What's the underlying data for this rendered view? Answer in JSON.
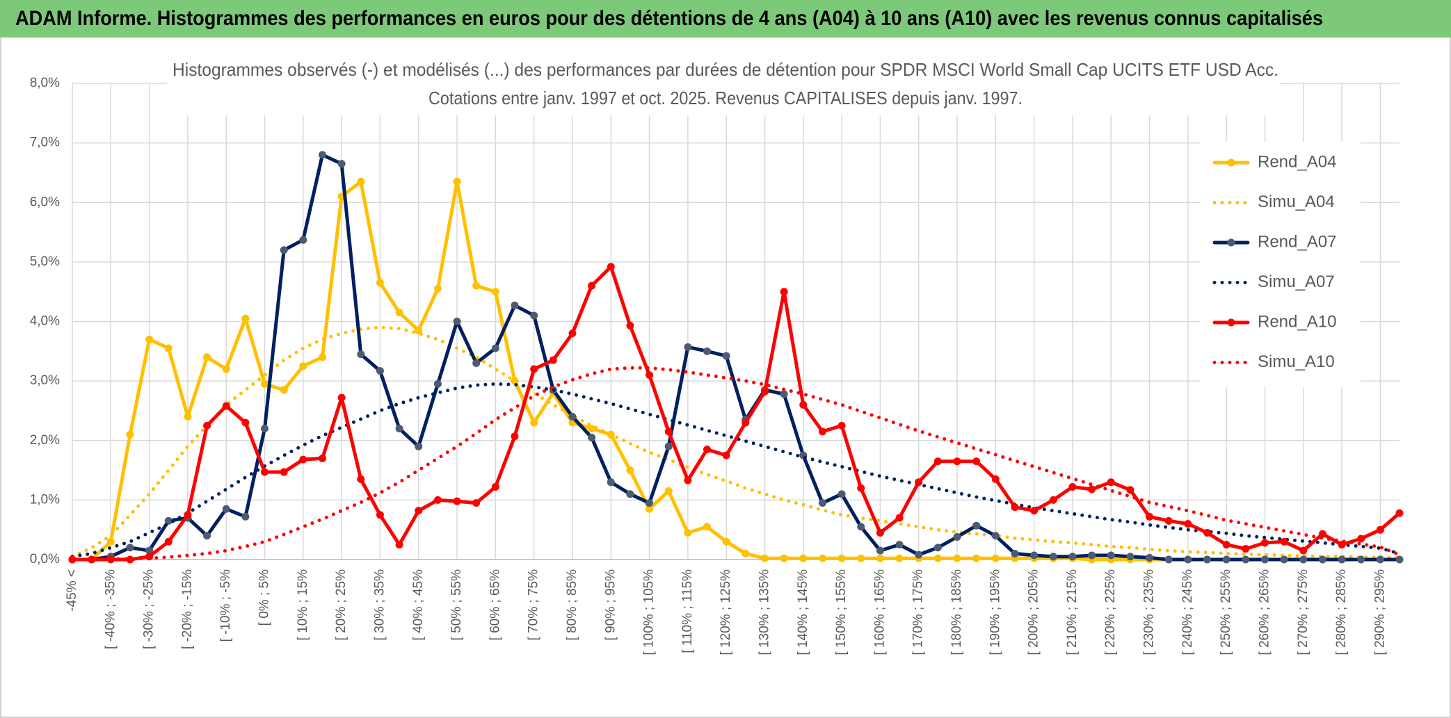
{
  "banner": "ADAM Informe. Histogrammes des performances en euros pour des détentions de 4 ans (A04) à 10 ans (A10) avec les revenus connus capitalisés",
  "chart_data": {
    "type": "line",
    "title": "Histogrammes observés (-) et modélisés (...) des performances par durées de détention pour SPDR MSCI World Small Cap UCITS ETF USD Acc.",
    "subtitle": "Cotations entre janv. 1997 et oct. 2025. Revenus CAPITALISES depuis janv. 1997.",
    "categories": [
      "-45% <",
      null,
      "[ -40% ; -35%",
      null,
      "[ -30% ; -25%",
      null,
      "[ -20% ; -15%",
      null,
      "[ -10% ; -5%",
      null,
      "[ 0% ; 5%",
      null,
      "[ 10% ; 15%",
      null,
      "[ 20% ; 25%",
      null,
      "[ 30% ; 35%",
      null,
      "[ 40% ; 45%",
      null,
      "[ 50% ; 55%",
      null,
      "[ 60% ; 65%",
      null,
      "[ 70% ; 75%",
      null,
      "[ 80% ; 85%",
      null,
      "[ 90% ; 95%",
      null,
      "[ 100% ; 105%",
      null,
      "[ 110% ; 115%",
      null,
      "[ 120% ; 125%",
      null,
      "[ 130% ; 135%",
      null,
      "[ 140% ; 145%",
      null,
      "[ 150% ; 155%",
      null,
      "[ 160% ; 165%",
      null,
      "[ 170% ; 175%",
      null,
      "[ 180% ; 185%",
      null,
      "[ 190% ; 195%",
      null,
      "[ 200% ; 205%",
      null,
      "[ 210% ; 215%",
      null,
      "[ 220% ; 225%",
      null,
      "[ 230% ; 235%",
      null,
      "[ 240% ; 245%",
      null,
      "[ 250% ; 255%",
      null,
      "[ 260% ; 265%",
      null,
      "[ 270% ; 275%",
      null,
      "[ 280% ; 285%",
      null,
      "[ 290% ; 295%",
      null
    ],
    "ylim": [
      0,
      8
    ],
    "yticks": [
      {
        "value": 0,
        "label": "0,0%"
      },
      {
        "value": 1,
        "label": "1,0%"
      },
      {
        "value": 2,
        "label": "2,0%"
      },
      {
        "value": 3,
        "label": "3,0%"
      },
      {
        "value": 4,
        "label": "4,0%"
      },
      {
        "value": 5,
        "label": "5,0%"
      },
      {
        "value": 6,
        "label": "6,0%"
      },
      {
        "value": 7,
        "label": "7,0%"
      },
      {
        "value": 8,
        "label": "8,0%"
      }
    ],
    "grid": true,
    "legend": "right",
    "series": [
      {
        "name": "Rend_A04",
        "color": "#ffc000",
        "line_style": "solid",
        "values": [
          0,
          0,
          0.3,
          2.1,
          3.7,
          3.55,
          2.4,
          3.4,
          3.2,
          4.05,
          2.95,
          2.85,
          3.25,
          3.4,
          6.1,
          6.35,
          4.65,
          4.15,
          3.85,
          4.55,
          6.35,
          4.6,
          4.5,
          3.0,
          2.3,
          2.8,
          2.3,
          2.2,
          2.1,
          1.5,
          0.85,
          1.15,
          0.45,
          0.55,
          0.3,
          0.1,
          0.02,
          0.02,
          0.02,
          0.02,
          0.02,
          0.02,
          0.02,
          0.02,
          0.02,
          0.02,
          0.02,
          0.02,
          0.02,
          0.02,
          0.02,
          0.02,
          0.02,
          0,
          0,
          0,
          0,
          0,
          0,
          0,
          0,
          0,
          0,
          0,
          0,
          0,
          0,
          0,
          0,
          0
        ]
      },
      {
        "name": "Simu_A04",
        "color": "#ffc000",
        "line_style": "dotted",
        "values": [
          0.05,
          0.2,
          0.4,
          0.75,
          1.1,
          1.5,
          1.9,
          2.25,
          2.6,
          2.85,
          3.1,
          3.35,
          3.55,
          3.7,
          3.8,
          3.87,
          3.9,
          3.88,
          3.8,
          3.7,
          3.55,
          3.4,
          3.2,
          3.0,
          2.8,
          2.6,
          2.42,
          2.25,
          2.1,
          1.95,
          1.8,
          1.68,
          1.55,
          1.43,
          1.32,
          1.2,
          1.1,
          1.0,
          0.92,
          0.83,
          0.75,
          0.7,
          0.65,
          0.6,
          0.55,
          0.5,
          0.46,
          0.43,
          0.4,
          0.36,
          0.33,
          0.3,
          0.28,
          0.25,
          0.22,
          0.2,
          0.17,
          0.15,
          0.13,
          0.12,
          0.1,
          0.09,
          0.08,
          0.07,
          0.06,
          0.05,
          0.05,
          0.04,
          0.04,
          0.03
        ]
      },
      {
        "name": "Rend_A07",
        "color": "#002060",
        "marker_color": "#4d5b72",
        "line_style": "solid",
        "values": [
          0,
          0,
          0.05,
          0.2,
          0.15,
          0.65,
          0.7,
          0.4,
          0.85,
          0.72,
          2.2,
          5.2,
          5.37,
          6.8,
          6.65,
          3.45,
          3.17,
          2.2,
          1.9,
          2.95,
          4.0,
          3.3,
          3.55,
          4.27,
          4.1,
          2.85,
          2.4,
          2.05,
          1.3,
          1.1,
          0.95,
          1.9,
          3.57,
          3.5,
          3.42,
          2.35,
          2.85,
          2.78,
          1.75,
          0.95,
          1.1,
          0.55,
          0.15,
          0.25,
          0.08,
          0.2,
          0.38,
          0.57,
          0.4,
          0.1,
          0.07,
          0.05,
          0.05,
          0.07,
          0.07,
          0.05,
          0.03,
          0,
          0,
          0,
          0,
          0,
          0,
          0,
          0,
          0,
          0,
          0,
          0,
          0
        ]
      },
      {
        "name": "Simu_A07",
        "color": "#002060",
        "line_style": "dotted",
        "values": [
          0.05,
          0.1,
          0.2,
          0.3,
          0.45,
          0.6,
          0.78,
          0.98,
          1.18,
          1.38,
          1.57,
          1.75,
          1.92,
          2.08,
          2.22,
          2.36,
          2.5,
          2.62,
          2.72,
          2.8,
          2.88,
          2.93,
          2.95,
          2.94,
          2.9,
          2.85,
          2.78,
          2.7,
          2.62,
          2.53,
          2.44,
          2.35,
          2.26,
          2.17,
          2.08,
          1.99,
          1.9,
          1.81,
          1.72,
          1.64,
          1.56,
          1.48,
          1.4,
          1.33,
          1.26,
          1.19,
          1.12,
          1.05,
          0.99,
          0.93,
          0.87,
          0.82,
          0.77,
          0.72,
          0.67,
          0.63,
          0.58,
          0.54,
          0.5,
          0.47,
          0.44,
          0.4,
          0.37,
          0.34,
          0.31,
          0.28,
          0.25,
          0.22,
          0.19,
          0.1
        ]
      },
      {
        "name": "Rend_A10",
        "color": "#ff0000",
        "line_style": "solid",
        "values": [
          0,
          0,
          0,
          0,
          0.05,
          0.3,
          0.75,
          2.25,
          2.58,
          2.3,
          1.47,
          1.47,
          1.68,
          1.7,
          2.72,
          1.35,
          0.75,
          0.25,
          0.82,
          1.0,
          0.98,
          0.95,
          1.22,
          2.07,
          3.2,
          3.35,
          3.8,
          4.6,
          4.92,
          3.93,
          3.1,
          2.15,
          1.33,
          1.85,
          1.75,
          2.3,
          2.82,
          4.5,
          2.6,
          2.15,
          2.25,
          1.2,
          0.45,
          0.7,
          1.3,
          1.65,
          1.65,
          1.65,
          1.35,
          0.88,
          0.82,
          1.0,
          1.22,
          1.18,
          1.3,
          1.17,
          0.72,
          0.65,
          0.6,
          0.45,
          0.25,
          0.18,
          0.28,
          0.3,
          0.15,
          0.43,
          0.25,
          0.35,
          0.5,
          0.78
        ]
      },
      {
        "name": "Simu_A10",
        "color": "#ff0000",
        "line_style": "dotted",
        "values": [
          0,
          0,
          0.01,
          0.01,
          0.02,
          0.04,
          0.07,
          0.1,
          0.15,
          0.22,
          0.3,
          0.42,
          0.55,
          0.68,
          0.82,
          0.96,
          1.12,
          1.3,
          1.5,
          1.7,
          1.9,
          2.12,
          2.35,
          2.55,
          2.75,
          2.9,
          3.02,
          3.12,
          3.2,
          3.22,
          3.22,
          3.19,
          3.15,
          3.1,
          3.05,
          3.0,
          2.94,
          2.86,
          2.78,
          2.69,
          2.6,
          2.49,
          2.38,
          2.27,
          2.16,
          2.06,
          1.96,
          1.86,
          1.76,
          1.66,
          1.56,
          1.46,
          1.36,
          1.26,
          1.16,
          1.06,
          0.96,
          0.89,
          0.82,
          0.74,
          0.66,
          0.6,
          0.54,
          0.48,
          0.42,
          0.36,
          0.31,
          0.26,
          0.21,
          0.08
        ]
      }
    ]
  }
}
